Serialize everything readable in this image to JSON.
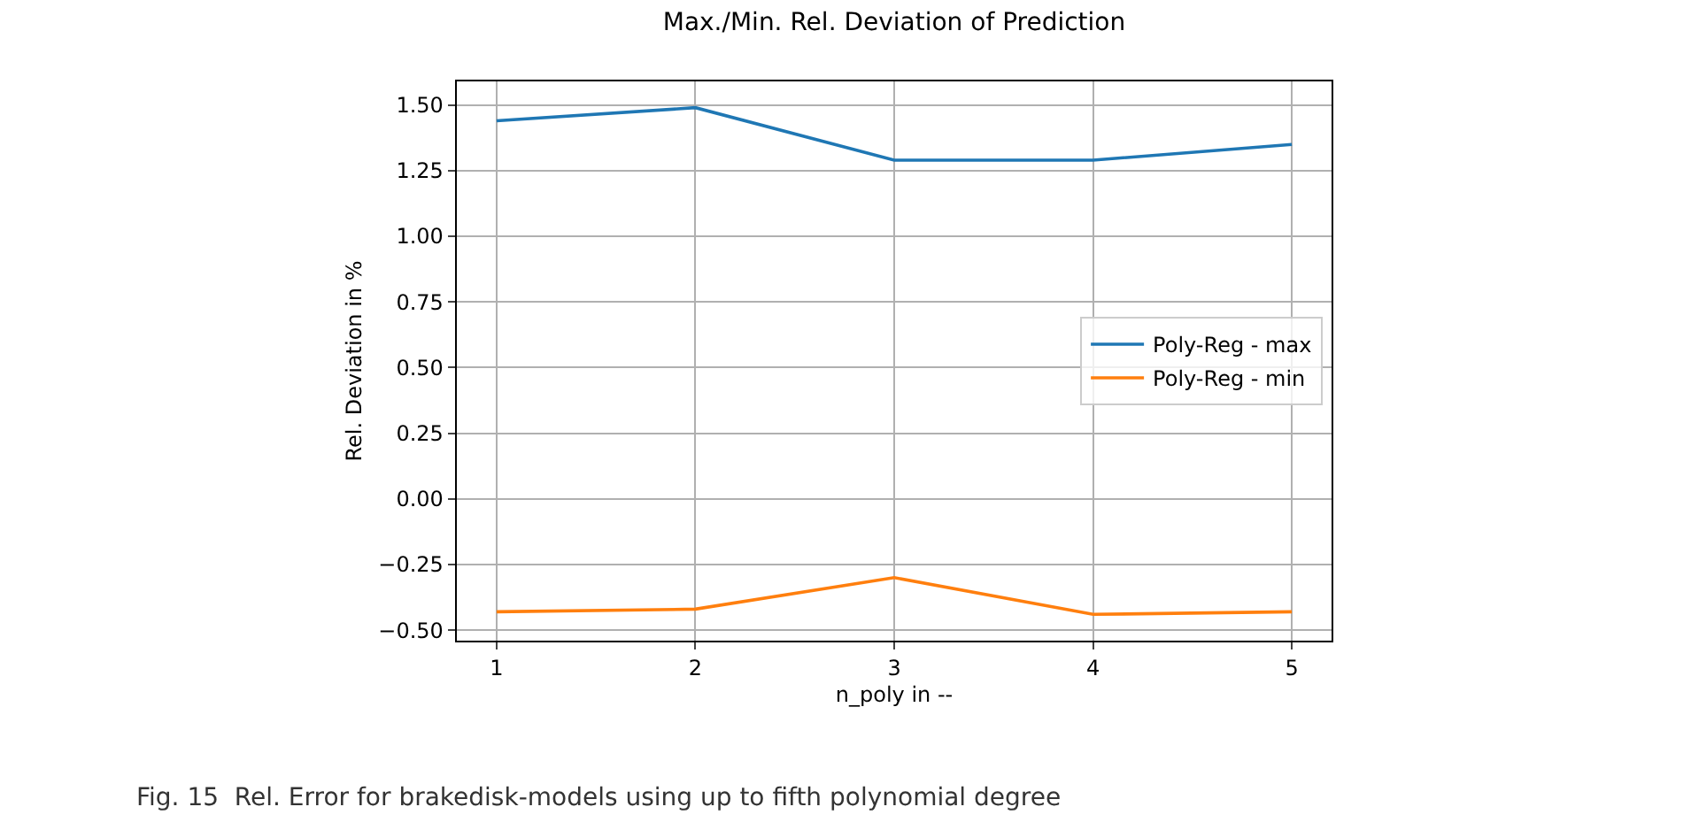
{
  "chart_data": {
    "type": "line",
    "title": "Max./Min. Rel. Deviation of Prediction",
    "xlabel": "n_poly in --",
    "ylabel": "Rel. Deviation in %",
    "x": [
      1,
      2,
      3,
      4,
      5
    ],
    "series": [
      {
        "name": "Poly-Reg - max",
        "color": "#1f77b4",
        "values": [
          1.44,
          1.49,
          1.29,
          1.29,
          1.35
        ]
      },
      {
        "name": "Poly-Reg - min",
        "color": "#ff7f0e",
        "values": [
          -0.43,
          -0.42,
          -0.3,
          -0.44,
          -0.43
        ]
      }
    ],
    "xlim": [
      0.8,
      5.2
    ],
    "xticks": [
      1,
      2,
      3,
      4,
      5
    ],
    "ylim": [
      -0.54,
      1.59
    ],
    "yticks": [
      {
        "value": -0.5,
        "label": "−0.50"
      },
      {
        "value": -0.25,
        "label": "−0.25"
      },
      {
        "value": 0,
        "label": "0.00"
      },
      {
        "value": 0.25,
        "label": "0.25"
      },
      {
        "value": 0.5,
        "label": "0.50"
      },
      {
        "value": 0.75,
        "label": "0.75"
      },
      {
        "value": 1.0,
        "label": "1.00"
      },
      {
        "value": 1.25,
        "label": "1.25"
      },
      {
        "value": 1.5,
        "label": "1.50"
      }
    ],
    "grid": true,
    "legend": "right",
    "marker": "none",
    "line_style": "solid",
    "annotations": [
      "Fig. 15  Rel. Error for brakedisk-models using up to fifth polynomial degree"
    ]
  }
}
